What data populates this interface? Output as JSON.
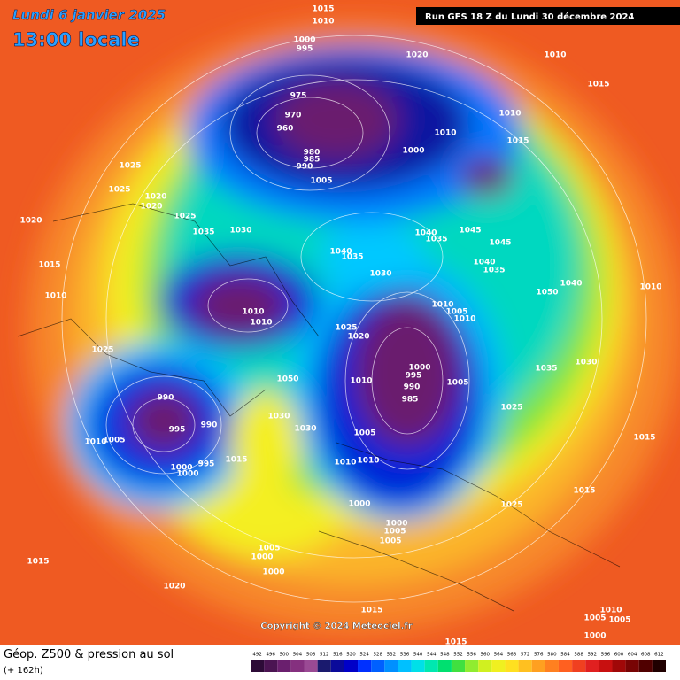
{
  "header": {
    "date": "Lundi 6 janvier 2025",
    "time": "13:00 locale",
    "run": "Run GFS 18 Z du Lundi 30 décembre 2024"
  },
  "copyright": "Copyright © 2024 Meteociel.fr",
  "footer": {
    "title": "Géop. Z500 & pression au sol",
    "lead": "(+ 162h)"
  },
  "scale": {
    "values": [
      492,
      496,
      500,
      504,
      508,
      512,
      516,
      520,
      524,
      528,
      532,
      536,
      540,
      544,
      548,
      552,
      556,
      560,
      564,
      568,
      572,
      576,
      580,
      584,
      588,
      592,
      596,
      600,
      604,
      608,
      612
    ],
    "colors": [
      "#2d0b37",
      "#4b1452",
      "#6a1f6e",
      "#85307f",
      "#9a4a94",
      "#1a1a6e",
      "#0a0a9a",
      "#0000c8",
      "#0030ff",
      "#0060ff",
      "#0090ff",
      "#00c0ff",
      "#00e0e8",
      "#00e8b0",
      "#00e070",
      "#40e040",
      "#90ec30",
      "#d0f020",
      "#f0f020",
      "#ffe020",
      "#ffc020",
      "#ffa020",
      "#ff8020",
      "#ff6020",
      "#f04020",
      "#e02020",
      "#c81010",
      "#a00808",
      "#780404",
      "#500000",
      "#200000"
    ]
  },
  "isobar_labels": [
    1015,
    1010,
    1000,
    995,
    1020,
    1010,
    1015,
    975,
    970,
    960,
    980,
    985,
    990,
    1010,
    1000,
    1010,
    1015,
    1005,
    1025,
    1025,
    1020,
    1020,
    1020,
    1025,
    1035,
    1030,
    1040,
    1035,
    1045,
    1045,
    1040,
    1035,
    1040,
    1035,
    1030,
    1015,
    1010,
    1050,
    1040,
    1010,
    1010,
    1010,
    1005,
    1010,
    1025,
    1020,
    1025,
    1000,
    995,
    990,
    985,
    1010,
    1005,
    1035,
    1030,
    1025,
    1010,
    1015,
    990,
    995,
    990,
    1005,
    1010,
    1015,
    995,
    1000,
    1000,
    1005,
    1010,
    1010,
    1030,
    1030,
    1050,
    1000,
    1015,
    1025,
    1000,
    1005,
    1005,
    1005,
    1000,
    1000,
    1015,
    1020,
    1015,
    1015,
    1010,
    1005,
    1005,
    1000
  ]
}
